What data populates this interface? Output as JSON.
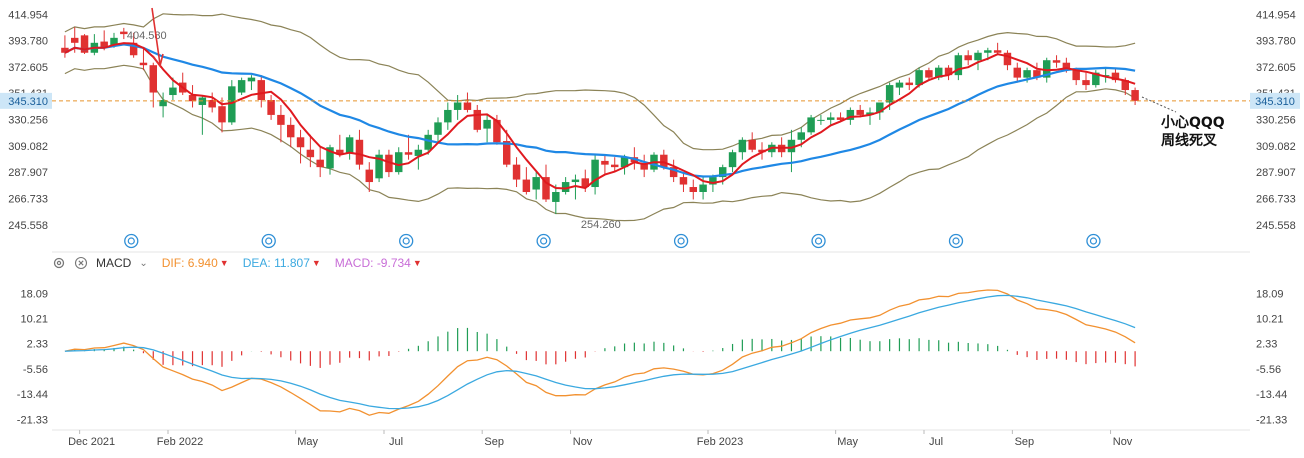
{
  "chart_data": [
    {
      "type": "candlestick",
      "title": "",
      "period": "weekly",
      "y_ticks": [
        "414.954",
        "393.780",
        "372.605",
        "351.431",
        "330.256",
        "309.082",
        "287.907",
        "266.733",
        "245.558"
      ],
      "ylim": [
        235,
        420
      ],
      "x_ticks": [
        "Dec 2021",
        "Feb 2022",
        "May",
        "Jul",
        "Sep",
        "Nov",
        "Feb 2023",
        "May",
        "Jul",
        "Sep",
        "Nov"
      ],
      "current_price": "345.310",
      "annotations": {
        "high_label": "404.580",
        "low_label": "254.260"
      },
      "overlays": [
        "MA red (short)",
        "MA blue (long)",
        "Bollinger bands"
      ],
      "candles": [
        [
          388,
          398,
          380,
          384
        ],
        [
          396,
          404.58,
          384,
          392
        ],
        [
          398,
          399,
          383,
          384
        ],
        [
          384,
          399,
          382,
          392
        ],
        [
          393,
          402,
          386,
          388
        ],
        [
          390,
          400,
          388,
          396
        ],
        [
          401,
          404,
          395,
          399
        ],
        [
          392,
          400,
          380,
          382
        ],
        [
          376,
          388,
          370,
          374
        ],
        [
          374,
          376,
          340,
          352
        ],
        [
          341,
          352,
          332,
          346
        ],
        [
          350,
          364,
          346,
          356
        ],
        [
          360,
          368,
          350,
          352
        ],
        [
          350,
          358,
          340,
          345
        ],
        [
          342,
          350,
          318,
          348
        ],
        [
          346,
          352,
          336,
          340
        ],
        [
          341,
          348,
          320,
          328
        ],
        [
          328,
          362,
          326,
          357
        ],
        [
          352,
          364,
          350,
          362
        ],
        [
          361,
          366,
          354,
          364
        ],
        [
          362,
          366,
          340,
          346
        ],
        [
          346,
          350,
          330,
          334
        ],
        [
          334,
          342,
          312,
          326
        ],
        [
          326,
          332,
          308,
          316
        ],
        [
          316,
          322,
          295,
          308
        ],
        [
          306,
          318,
          292,
          300
        ],
        [
          298,
          308,
          284,
          292
        ],
        [
          291,
          310,
          286,
          308
        ],
        [
          306,
          318,
          300,
          302
        ],
        [
          303,
          318,
          298,
          316
        ],
        [
          314,
          322,
          290,
          294
        ],
        [
          290,
          296,
          272,
          280
        ],
        [
          283,
          306,
          280,
          302
        ],
        [
          302,
          306,
          284,
          288
        ],
        [
          288,
          308,
          286,
          304
        ],
        [
          304,
          318,
          298,
          302
        ],
        [
          301,
          310,
          290,
          306
        ],
        [
          306,
          322,
          302,
          318
        ],
        [
          318,
          332,
          312,
          328
        ],
        [
          328,
          344,
          322,
          338
        ],
        [
          338,
          350,
          330,
          344
        ],
        [
          344,
          352,
          336,
          338
        ],
        [
          338,
          342,
          320,
          322
        ],
        [
          323,
          334,
          312,
          330
        ],
        [
          330,
          334,
          310,
          312
        ],
        [
          313,
          322,
          292,
          294
        ],
        [
          294,
          300,
          276,
          282
        ],
        [
          282,
          292,
          270,
          272
        ],
        [
          274,
          288,
          266,
          284
        ],
        [
          284,
          294,
          264,
          266
        ],
        [
          264,
          278,
          254.26,
          272
        ],
        [
          272,
          284,
          270,
          280
        ],
        [
          280,
          286,
          266,
          282
        ],
        [
          283,
          290,
          272,
          276
        ],
        [
          276,
          302,
          270,
          298
        ],
        [
          297,
          302,
          286,
          294
        ],
        [
          294,
          300,
          288,
          292
        ],
        [
          292,
          302,
          286,
          300
        ],
        [
          300,
          308,
          290,
          296
        ],
        [
          295,
          302,
          284,
          290
        ],
        [
          290,
          304,
          288,
          302
        ],
        [
          302,
          306,
          290,
          292
        ],
        [
          292,
          298,
          280,
          284
        ],
        [
          284,
          288,
          272,
          278
        ],
        [
          276,
          282,
          266,
          272
        ],
        [
          272,
          284,
          266,
          278
        ],
        [
          278,
          286,
          272,
          284
        ],
        [
          284,
          294,
          278,
          292
        ],
        [
          292,
          306,
          288,
          304
        ],
        [
          304,
          316,
          298,
          314
        ],
        [
          314,
          320,
          304,
          306
        ],
        [
          306,
          312,
          298,
          304
        ],
        [
          304,
          312,
          300,
          310
        ],
        [
          310,
          316,
          300,
          304
        ],
        [
          304,
          322,
          288,
          314
        ],
        [
          314,
          324,
          308,
          320
        ],
        [
          320,
          334,
          318,
          332
        ],
        [
          330,
          334,
          326,
          330
        ],
        [
          330,
          336,
          326,
          332
        ],
        [
          332,
          336,
          328,
          330
        ],
        [
          330,
          340,
          326,
          338
        ],
        [
          338,
          342,
          332,
          334
        ],
        [
          334,
          340,
          326,
          336
        ],
        [
          336,
          344,
          330,
          344
        ],
        [
          344,
          360,
          338,
          358
        ],
        [
          356,
          362,
          350,
          360
        ],
        [
          360,
          364,
          354,
          358
        ],
        [
          358,
          372,
          356,
          370
        ],
        [
          370,
          372,
          362,
          364
        ],
        [
          364,
          374,
          362,
          372
        ],
        [
          372,
          374,
          362,
          366
        ],
        [
          366,
          384,
          362,
          382
        ],
        [
          382,
          386,
          374,
          378
        ],
        [
          378,
          386,
          370,
          384
        ],
        [
          384,
          388,
          378,
          386
        ],
        [
          386,
          392,
          382,
          384
        ],
        [
          384,
          386,
          370,
          374
        ],
        [
          372,
          376,
          360,
          364
        ],
        [
          364,
          372,
          360,
          370
        ],
        [
          370,
          376,
          362,
          364
        ],
        [
          364,
          380,
          360,
          378
        ],
        [
          378,
          382,
          372,
          376
        ],
        [
          376,
          380,
          368,
          370
        ],
        [
          370,
          372,
          358,
          362
        ],
        [
          362,
          368,
          354,
          358
        ],
        [
          358,
          370,
          356,
          368
        ],
        [
          366,
          372,
          360,
          366
        ],
        [
          368,
          372,
          360,
          362
        ],
        [
          362,
          364,
          350,
          354
        ],
        [
          354,
          356,
          342,
          345.31
        ]
      ]
    },
    {
      "type": "macd",
      "params_label": "MACD",
      "dif_label": "DIF:",
      "dif_value": "6.940",
      "dea_label": "DEA:",
      "dea_value": "11.807",
      "macd_label": "MACD:",
      "macd_value": "-9.734",
      "y_ticks": [
        "18.09",
        "10.21",
        "2.33",
        "-5.56",
        "-13.44",
        "-21.33"
      ],
      "ylim": [
        -24,
        21
      ]
    }
  ],
  "annotation_text": [
    "小心QQQ",
    "周线死叉"
  ],
  "colors": {
    "up": "#1f9d55",
    "down": "#e03131",
    "ma_short": "#e0191f",
    "ma_long": "#1f88e5",
    "bands": "#8b8357",
    "dif": "#f29130",
    "dea": "#3ba9e0",
    "hist_up": "#1f9d55",
    "hist_down": "#e03131",
    "price_line": "#e8952c",
    "axis_text": "#444444",
    "macd_text": "#9b59b6"
  }
}
